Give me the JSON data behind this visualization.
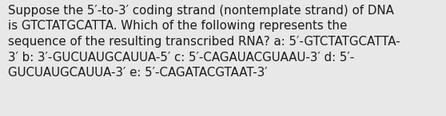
{
  "text": "Suppose the 5′-to-3′ coding strand (nontemplate strand) of DNA\nis GTCTATGCATTA. Which of the following represents the\nsequence of the resulting transcribed RNA? a: 5′-GTCTATGCATTA-\n3′ b: 3′-GUCUAUGCAUUA-5′ c: 5′-CAGAUACGUAAU-3′ d: 5′-\nGUCUAUGCAUUA-3′ e: 5′-CAGATACGTAAT-3′",
  "background_color": "#e8e8e8",
  "text_color": "#1a1a1a",
  "font_size": 10.8,
  "fig_width": 5.58,
  "fig_height": 1.46
}
